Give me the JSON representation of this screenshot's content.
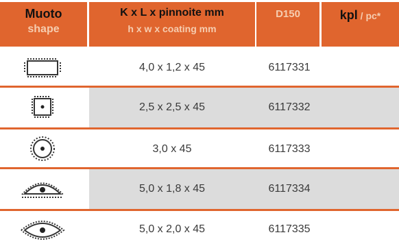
{
  "header": {
    "shape_fi": "Muoto",
    "shape_en": "shape",
    "size_fi": "K x L x pinnoite mm",
    "size_en": "h x w x coating mm",
    "code": "D150",
    "unit_fi": "kpl",
    "unit_sep": " / ",
    "unit_en": "pc*"
  },
  "rows": [
    {
      "icon": "rectangle-shape-icon",
      "size": "4,0 x 1,2 x 45",
      "code": "6117331"
    },
    {
      "icon": "square-shape-icon",
      "size": "2,5 x 2,5 x 45",
      "code": "6117332"
    },
    {
      "icon": "round-shape-icon",
      "size": "3,0 x 45",
      "code": "6117333"
    },
    {
      "icon": "half-eye-shape-icon",
      "size": "5,0 x 1,8 x 45",
      "code": "6117334"
    },
    {
      "icon": "eye-shape-icon",
      "size": "5,0 x 2,0 x 45",
      "code": "6117335"
    }
  ],
  "colors": {
    "accent": "#e0652e",
    "row_shade": "#dcdcdc",
    "header_subtext": "#f6cdb0"
  }
}
